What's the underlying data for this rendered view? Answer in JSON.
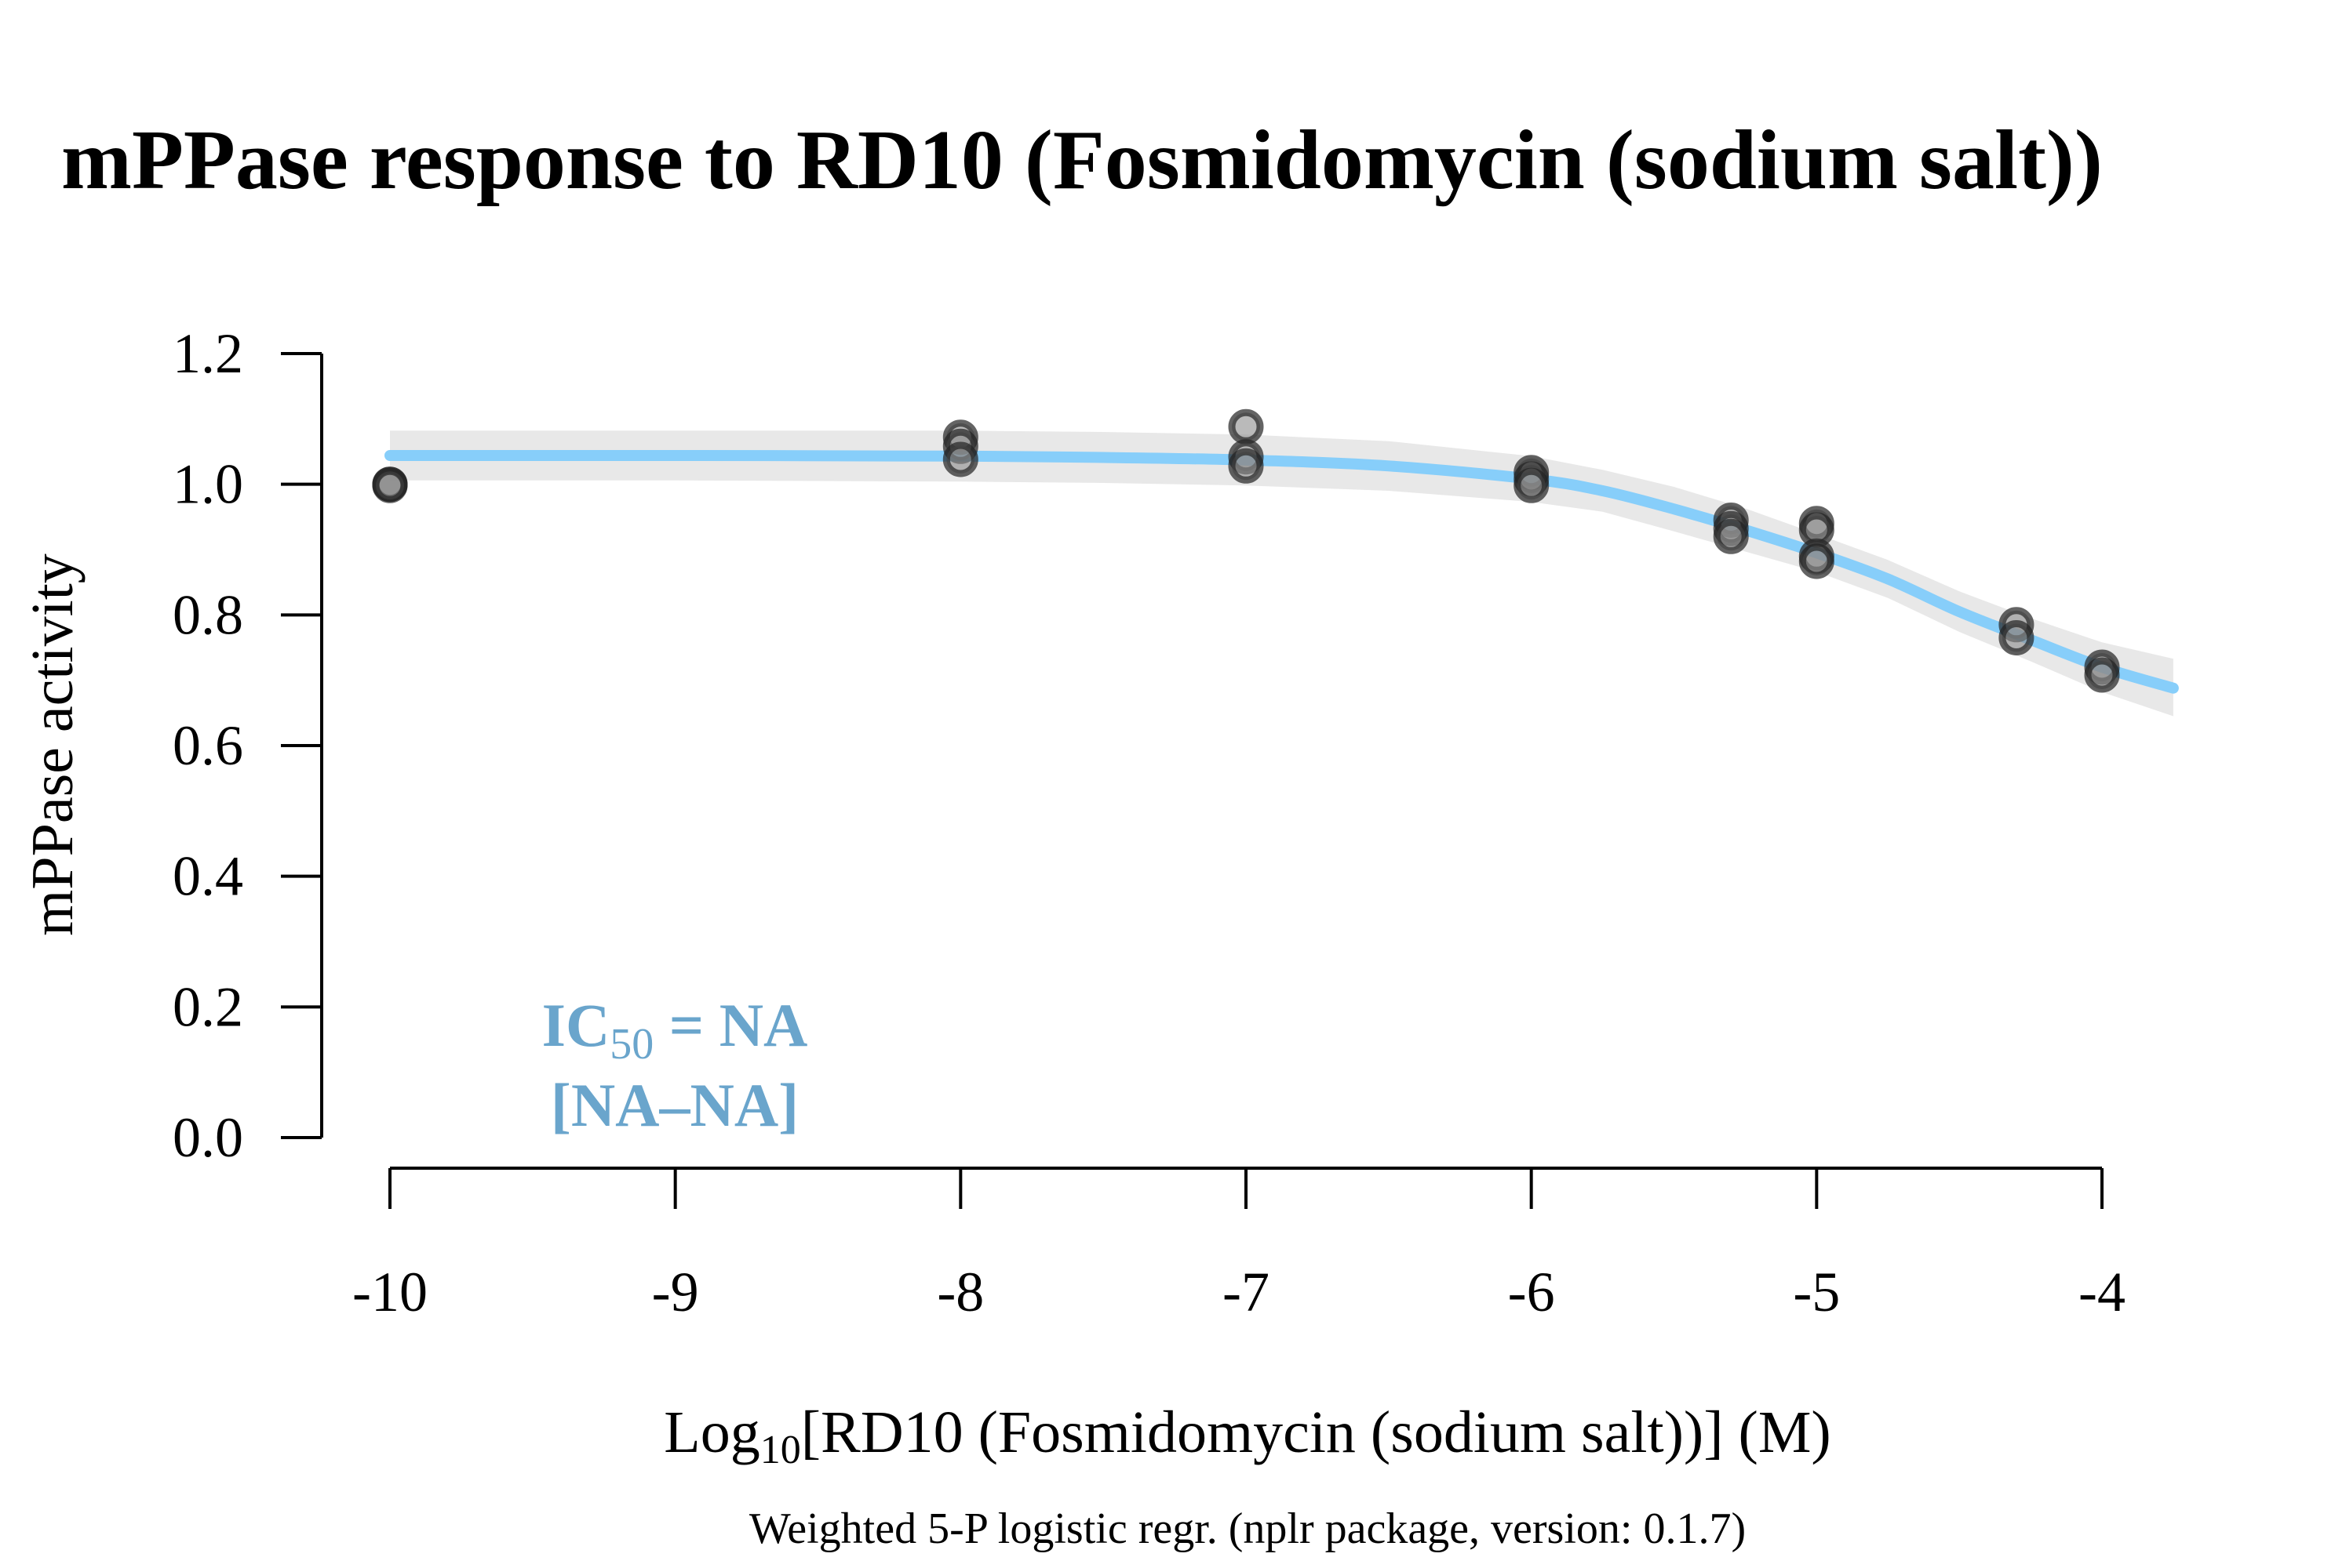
{
  "chart_data": {
    "type": "scatter",
    "title": "mPPase response to RD10 (Fosmidomycin (sodium salt))",
    "xlabel": {
      "prefix": "Log",
      "sub": "10",
      "suffix": "[RD10 (Fosmidomycin (sodium salt))] (M)"
    },
    "ylabel": "mPPase activity",
    "footnote": "Weighted 5-P logistic regr. (nplr package, version: 0.1.7)",
    "annotation": {
      "line1_prefix": "IC",
      "line1_sub": "50",
      "line1_suffix": " = NA",
      "line2": "[NA–NA]",
      "color": "#6aa5cc"
    },
    "xlim": [
      -10,
      -4
    ],
    "ylim": [
      0,
      1.2
    ],
    "x_ticks": [
      -10,
      -9,
      -8,
      -7,
      -6,
      -5,
      -4
    ],
    "x_tick_labels": [
      "-10",
      "-9",
      "-8",
      "-7",
      "-6",
      "-5",
      "-4"
    ],
    "y_ticks": [
      0,
      0.2,
      0.4,
      0.6,
      0.8,
      1.0,
      1.2
    ],
    "y_tick_labels": [
      "0.0",
      "0.2",
      "0.4",
      "0.6",
      "0.8",
      "1.0",
      "1.2"
    ],
    "grid": false,
    "series": [
      {
        "points": [
          {
            "x": -10,
            "y": 1.0
          },
          {
            "x": -10,
            "y": 1.0
          },
          {
            "x": -10,
            "y": 0.998
          },
          {
            "x": -8,
            "y": 1.072
          },
          {
            "x": -8,
            "y": 1.058
          },
          {
            "x": -8,
            "y": 1.038
          },
          {
            "x": -7,
            "y": 1.088
          },
          {
            "x": -7,
            "y": 1.042
          },
          {
            "x": -7,
            "y": 1.028
          },
          {
            "x": -6,
            "y": 1.018
          },
          {
            "x": -6,
            "y": 1.008
          },
          {
            "x": -6,
            "y": 0.998
          },
          {
            "x": -5.3,
            "y": 0.945
          },
          {
            "x": -5.3,
            "y": 0.932
          },
          {
            "x": -5.3,
            "y": 0.92
          },
          {
            "x": -5,
            "y": 0.94
          },
          {
            "x": -5,
            "y": 0.93
          },
          {
            "x": -5,
            "y": 0.89
          },
          {
            "x": -5,
            "y": 0.882
          },
          {
            "x": -4.3,
            "y": 0.785
          },
          {
            "x": -4.3,
            "y": 0.765
          },
          {
            "x": -4,
            "y": 0.72
          },
          {
            "x": -4,
            "y": 0.708
          }
        ],
        "color": "#333333"
      }
    ],
    "fit_curve": {
      "color": "#87cefa",
      "x": [
        -10,
        -9,
        -8,
        -7.5,
        -7,
        -6.5,
        -6,
        -5.75,
        -5.5,
        -5.25,
        -5,
        -4.75,
        -4.5,
        -4.25,
        -4,
        -3.75
      ],
      "y": [
        1.044,
        1.044,
        1.043,
        1.041,
        1.037,
        1.028,
        1.008,
        0.99,
        0.962,
        0.93,
        0.895,
        0.855,
        0.805,
        0.762,
        0.72,
        0.688
      ]
    },
    "confidence_band": {
      "color": "#e8e8e8",
      "upper": [
        1.082,
        1.082,
        1.082,
        1.08,
        1.076,
        1.066,
        1.043,
        1.022,
        0.996,
        0.963,
        0.924,
        0.884,
        0.836,
        0.795,
        0.758,
        0.733
      ],
      "lower": [
        1.006,
        1.006,
        1.004,
        1.002,
        0.998,
        0.99,
        0.973,
        0.958,
        0.928,
        0.897,
        0.866,
        0.826,
        0.774,
        0.729,
        0.682,
        0.645
      ]
    }
  }
}
